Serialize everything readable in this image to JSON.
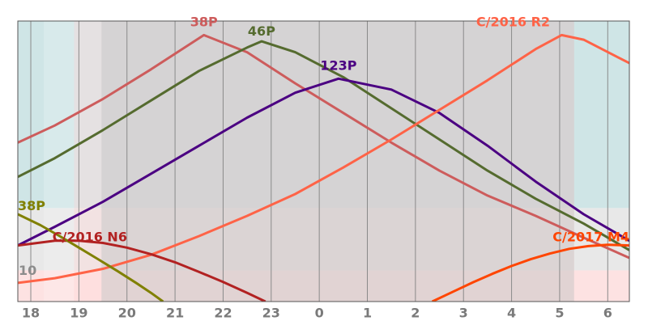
{
  "chart_data": {
    "type": "line",
    "xlim": [
      17.73,
      30.45
    ],
    "ylim": [
      0,
      90
    ],
    "x_ticks": [
      {
        "value": 18,
        "label": "18"
      },
      {
        "value": 19,
        "label": "19"
      },
      {
        "value": 20,
        "label": "20"
      },
      {
        "value": 21,
        "label": "21"
      },
      {
        "value": 22,
        "label": "22"
      },
      {
        "value": 23,
        "label": "23"
      },
      {
        "value": 24,
        "label": "0"
      },
      {
        "value": 25,
        "label": "1"
      },
      {
        "value": 26,
        "label": "2"
      },
      {
        "value": 27,
        "label": "3"
      },
      {
        "value": 28,
        "label": "4"
      },
      {
        "value": 29,
        "label": "5"
      },
      {
        "value": 30,
        "label": "6"
      }
    ],
    "hlines": [
      {
        "value": 10,
        "label": "10"
      }
    ],
    "bands": [
      {
        "x0": 17.73,
        "x1": 30.45,
        "y0": 0,
        "y1": 10,
        "color": "#fde2e2"
      },
      {
        "x0": 17.73,
        "x1": 30.45,
        "y0": 10,
        "y1": 30,
        "color": "#e8e8e8"
      },
      {
        "x0": 17.73,
        "x1": 30.45,
        "y0": 30,
        "y1": 90,
        "color": "#cfe5e6"
      },
      {
        "x0": 18.27,
        "x1": 29.3,
        "y0": 0,
        "y1": 90,
        "color": "#ffffff",
        "opacity": 0.2
      },
      {
        "x0": 18.9,
        "x1": 29.3,
        "y0": 0,
        "y1": 90,
        "color": "#ffd0d0",
        "opacity": 0.35
      },
      {
        "x0": 19.47,
        "x1": 29.3,
        "y0": 0,
        "y1": 90,
        "color": "#c8c8c8",
        "opacity": 0.55
      }
    ],
    "series": [
      {
        "name": "38P",
        "color": "#cd5c5c",
        "label_x": 21.6,
        "label_y": 88.3,
        "label_anchor": "middle",
        "x": [
          17.73,
          18.5,
          19.5,
          20.5,
          21.6,
          22.5,
          23.5,
          24.5,
          25.5,
          26.5,
          27.5,
          28.5,
          29.5,
          30.45
        ],
        "y": [
          51,
          56.5,
          65,
          74.5,
          85.5,
          80,
          70,
          60.5,
          51,
          42,
          34,
          27.5,
          20.5,
          14
        ]
      },
      {
        "name": "46P",
        "color": "#556b2f",
        "label_x": 22.8,
        "label_y": 85.3,
        "label_anchor": "middle",
        "x": [
          17.73,
          18.5,
          19.5,
          20.5,
          21.5,
          22.5,
          22.8,
          23.5,
          24.5,
          25.5,
          26.5,
          27.5,
          28.5,
          29.5,
          30.45
        ],
        "y": [
          40,
          46,
          55,
          64.5,
          74,
          81.5,
          83.5,
          80,
          72,
          62,
          52,
          42,
          33,
          25,
          16.5
        ]
      },
      {
        "name": "123P",
        "color": "#4b0082",
        "label_x": 24.4,
        "label_y": 74.3,
        "label_anchor": "middle",
        "x": [
          17.73,
          18.5,
          19.5,
          20.5,
          21.5,
          22.5,
          23.5,
          24.4,
          25.5,
          26.5,
          27.5,
          28.5,
          29.5,
          30.45
        ],
        "y": [
          18,
          24,
          32,
          41,
          50,
          59,
          67,
          71.5,
          68,
          60.5,
          50,
          38.5,
          28,
          19.5
        ]
      },
      {
        "name": "C/2016 R2",
        "color": "#ff6347",
        "label_x": 28.8,
        "label_y": 88.3,
        "label_anchor": "end",
        "x": [
          17.73,
          18.5,
          19.5,
          20.5,
          21.5,
          22.5,
          23.5,
          24.5,
          25.5,
          26.5,
          27.5,
          28.5,
          29.04,
          29.5,
          30.45
        ],
        "y": [
          6,
          7.5,
          10.5,
          15,
          21,
          27.5,
          34.5,
          43,
          52,
          61.5,
          71,
          81,
          85.5,
          84,
          76.5
        ]
      },
      {
        "name": "C/2016 N6",
        "color": "#b22222",
        "label_x": 18.45,
        "label_y": 19.3,
        "label_anchor": "start",
        "x": [
          17.73,
          18.5,
          19.0,
          19.5,
          20.0,
          20.5,
          21.0,
          21.5,
          22.0,
          22.5,
          22.88
        ],
        "y": [
          18,
          19.5,
          19.5,
          18.8,
          17.3,
          15.2,
          12.6,
          9.5,
          6.3,
          2.8,
          0
        ]
      },
      {
        "name": "38P",
        "color": "#808000",
        "label_x": 17.73,
        "label_y": 29.3,
        "label_anchor": "start",
        "x": [
          17.73,
          18.2,
          18.6,
          19.0,
          19.4,
          19.8,
          20.2,
          20.5,
          20.75
        ],
        "y": [
          28,
          24.5,
          21,
          17.3,
          13.6,
          9.8,
          5.9,
          2.8,
          0
        ]
      },
      {
        "name": "C/2017 M4",
        "color": "#ff4500",
        "label_x": 30.45,
        "label_y": 19.3,
        "label_anchor": "end",
        "x": [
          26.35,
          26.8,
          27.2,
          27.6,
          28.0,
          28.4,
          28.8,
          29.2,
          29.6,
          30.0,
          30.45
        ],
        "y": [
          0,
          3.3,
          6.2,
          8.9,
          11.4,
          13.6,
          15.4,
          16.9,
          17.8,
          18.2,
          18.0
        ]
      }
    ]
  }
}
